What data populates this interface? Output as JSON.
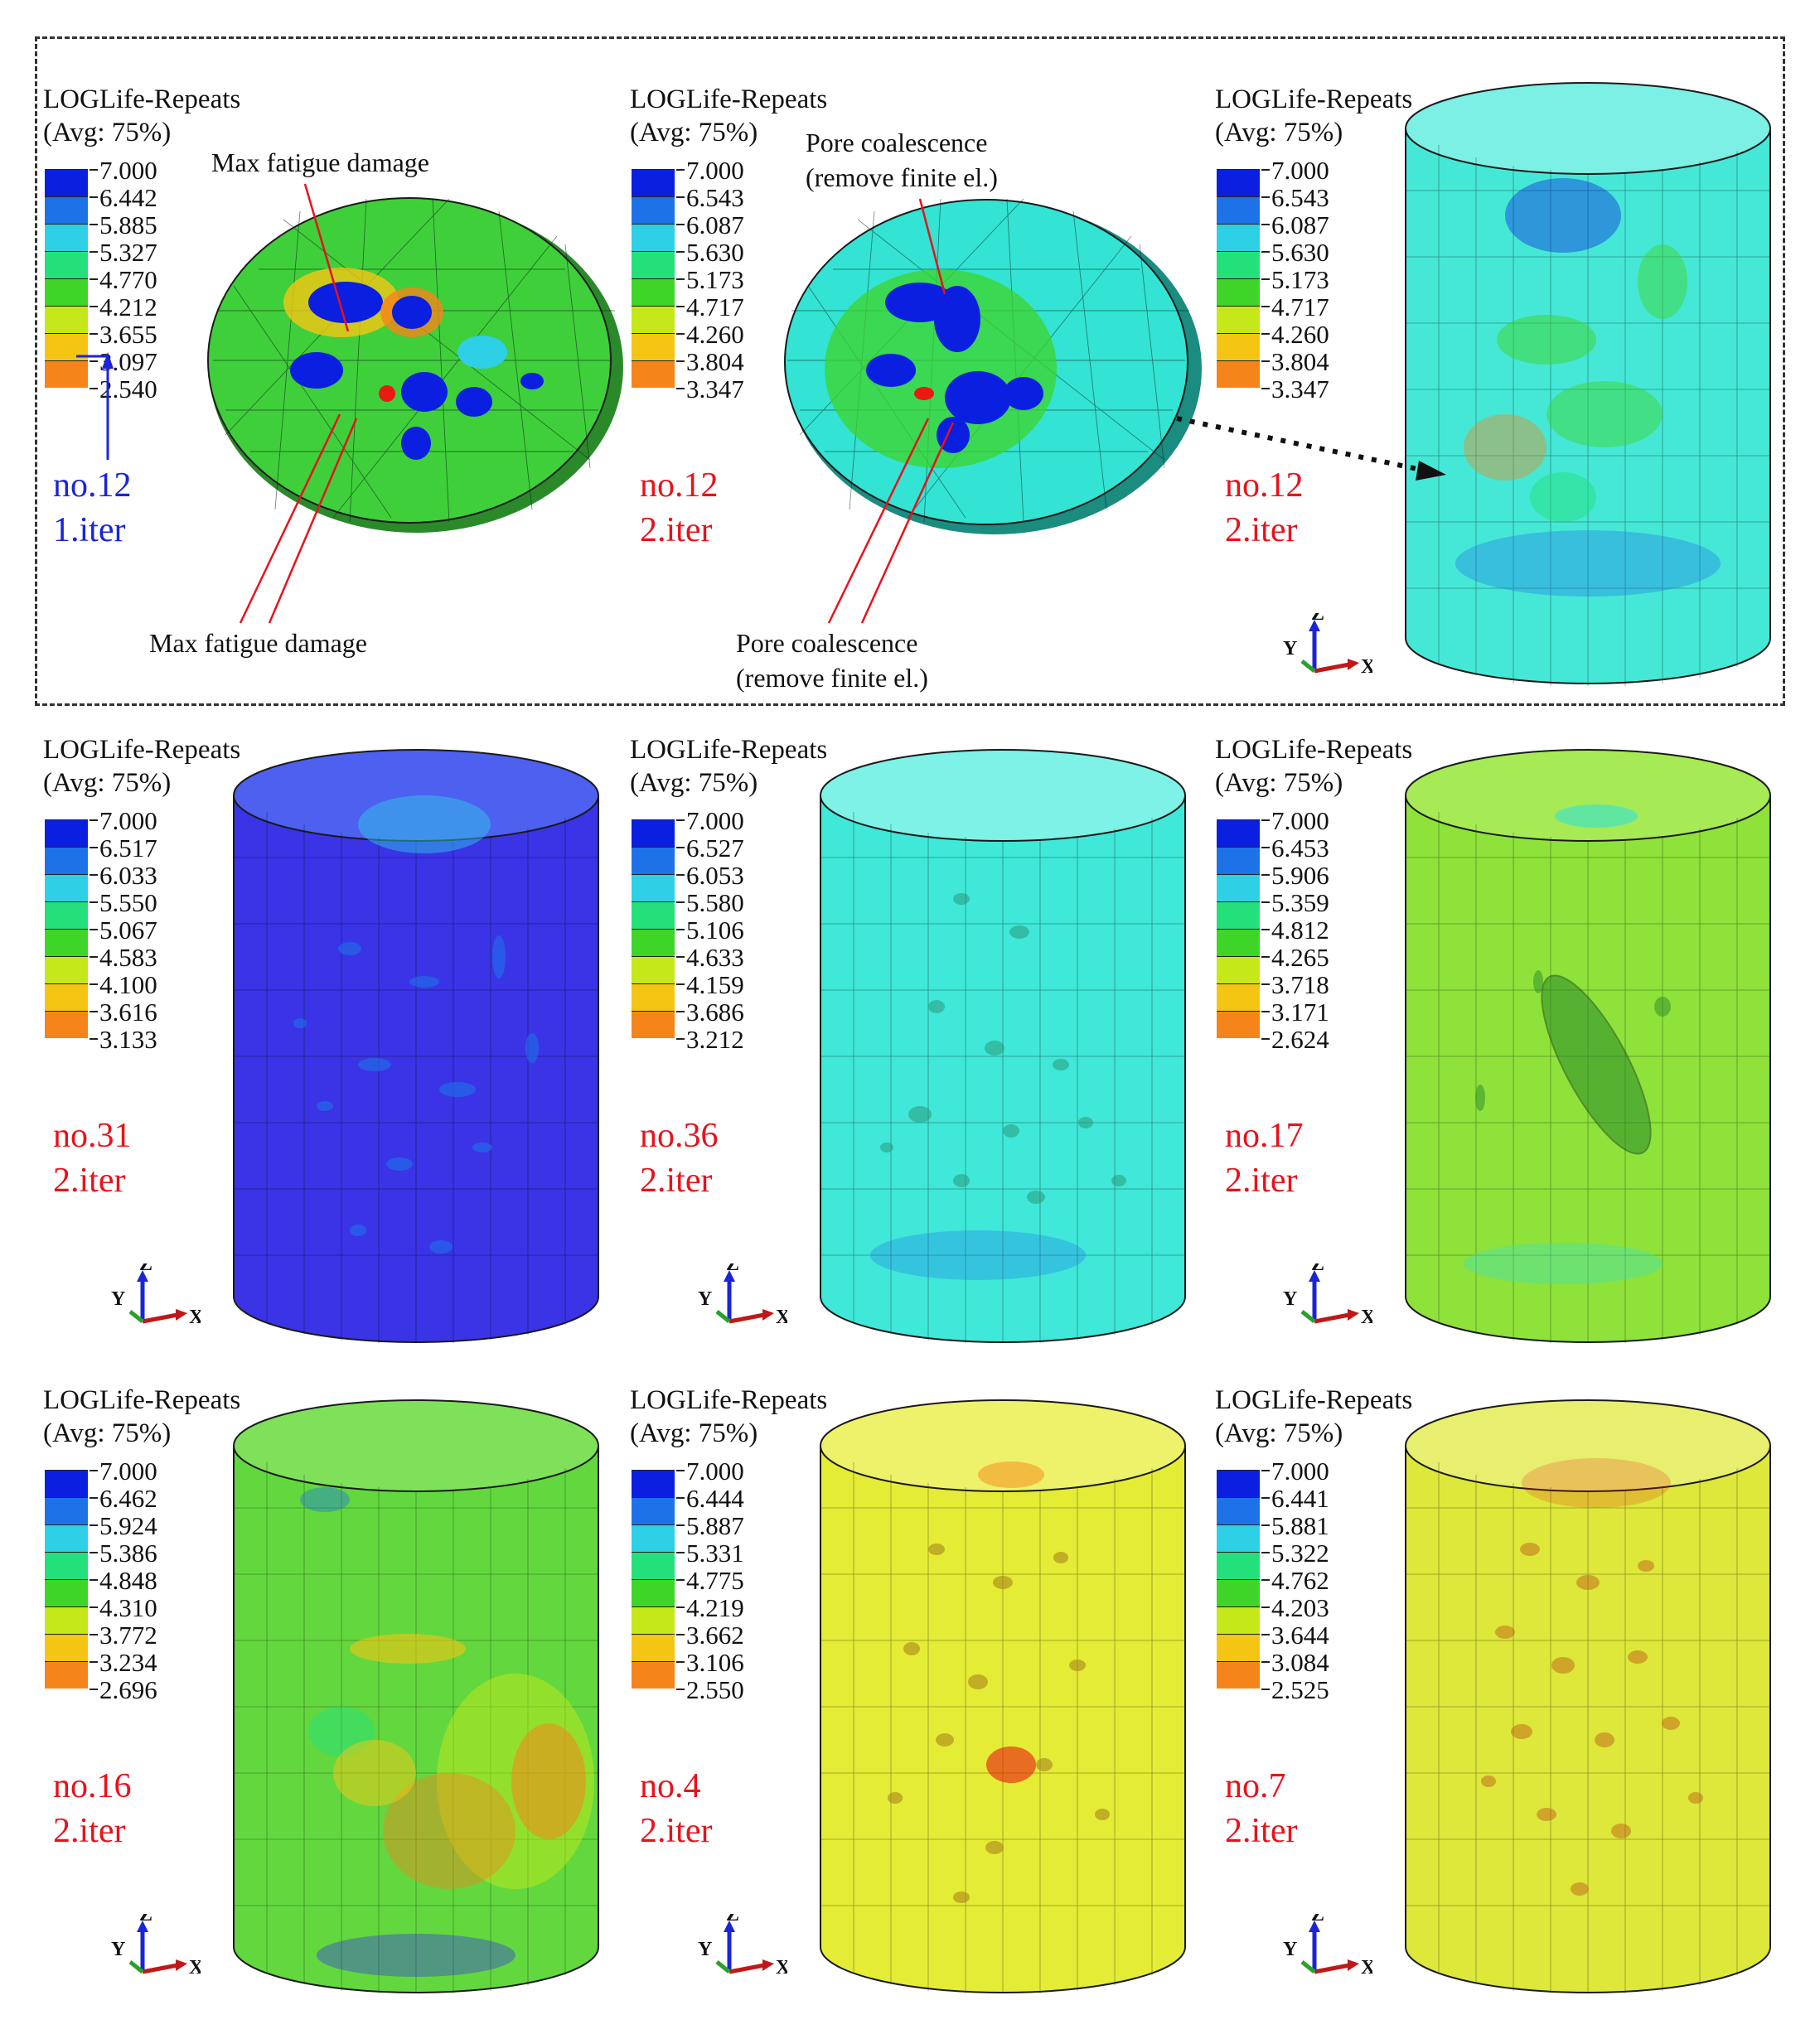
{
  "panels": [
    {
      "title": "LOGLife-Repeats",
      "avg": "(Avg: 75%)",
      "values": [
        "7.000",
        "6.442",
        "5.885",
        "5.327",
        "4.770",
        "4.212",
        "3.655",
        "3.097",
        "2.540"
      ],
      "case": "no.12",
      "iter": "1.iter",
      "case_color": "#1a25d6",
      "fill": "#3fcf3a"
    },
    {
      "title": "LOGLife-Repeats",
      "avg": "(Avg: 75%)",
      "values": [
        "7.000",
        "6.543",
        "6.087",
        "5.630",
        "5.173",
        "4.717",
        "4.260",
        "3.804",
        "3.347"
      ],
      "case": "no.12",
      "iter": "2.iter",
      "case_color": "#e8121b",
      "fill": "#33e3d3"
    },
    {
      "title": "LOGLife-Repeats",
      "avg": "(Avg: 75%)",
      "values": [
        "7.000",
        "6.543",
        "6.087",
        "5.630",
        "5.173",
        "4.717",
        "4.260",
        "3.804",
        "3.347"
      ],
      "case": "no.12",
      "iter": "2.iter",
      "case_color": "#e8121b",
      "fill": "#45e8d6"
    },
    {
      "title": "LOGLife-Repeats",
      "avg": "(Avg: 75%)",
      "values": [
        "7.000",
        "6.517",
        "6.033",
        "5.550",
        "5.067",
        "4.583",
        "4.100",
        "3.616",
        "3.133"
      ],
      "case": "no.31",
      "iter": "2.iter",
      "case_color": "#e8121b",
      "fill": "#3a34e6"
    },
    {
      "title": "LOGLife-Repeats",
      "avg": "(Avg: 75%)",
      "values": [
        "7.000",
        "6.527",
        "6.053",
        "5.580",
        "5.106",
        "4.633",
        "4.159",
        "3.686",
        "3.212"
      ],
      "case": "no.36",
      "iter": "2.iter",
      "case_color": "#e8121b",
      "fill": "#3fe8d8"
    },
    {
      "title": "LOGLife-Repeats",
      "avg": "(Avg: 75%)",
      "values": [
        "7.000",
        "6.453",
        "5.906",
        "5.359",
        "4.812",
        "4.265",
        "3.718",
        "3.171",
        "2.624"
      ],
      "case": "no.17",
      "iter": "2.iter",
      "case_color": "#e8121b",
      "fill": "#8ee23a"
    },
    {
      "title": "LOGLife-Repeats",
      "avg": "(Avg: 75%)",
      "values": [
        "7.000",
        "6.462",
        "5.924",
        "5.386",
        "4.848",
        "4.310",
        "3.772",
        "3.234",
        "2.696"
      ],
      "case": "no.16",
      "iter": "2.iter",
      "case_color": "#e8121b",
      "fill": "#62d83e"
    },
    {
      "title": "LOGLife-Repeats",
      "avg": "(Avg: 75%)",
      "values": [
        "7.000",
        "6.444",
        "5.887",
        "5.331",
        "4.775",
        "4.219",
        "3.662",
        "3.106",
        "2.550"
      ],
      "case": "no.4",
      "iter": "2.iter",
      "case_color": "#e8121b",
      "fill": "#e4ec35"
    },
    {
      "title": "LOGLife-Repeats",
      "avg": "(Avg: 75%)",
      "values": [
        "7.000",
        "6.441",
        "5.881",
        "5.322",
        "4.762",
        "4.203",
        "3.644",
        "3.084",
        "2.525"
      ],
      "case": "no.7",
      "iter": "2.iter",
      "case_color": "#e8121b",
      "fill": "#dde83a"
    }
  ],
  "scale_colors": [
    "#0a1fe0",
    "#1e72e8",
    "#2ed0e6",
    "#24e07a",
    "#3fd428",
    "#c4e81a",
    "#f5c514",
    "#f5851a",
    "#ea1a12"
  ],
  "annotations": {
    "max_fatigue_top": "Max fatigue damage",
    "max_fatigue_bottom": "Max fatigue damage",
    "pore_top_1": "Pore coalescence",
    "pore_top_2": "(remove finite el.)",
    "pore_bottom_1": "Pore coalescence",
    "pore_bottom_2": "(remove finite el.)"
  },
  "axes": {
    "z": "Z",
    "y": "Y",
    "x": "X"
  }
}
